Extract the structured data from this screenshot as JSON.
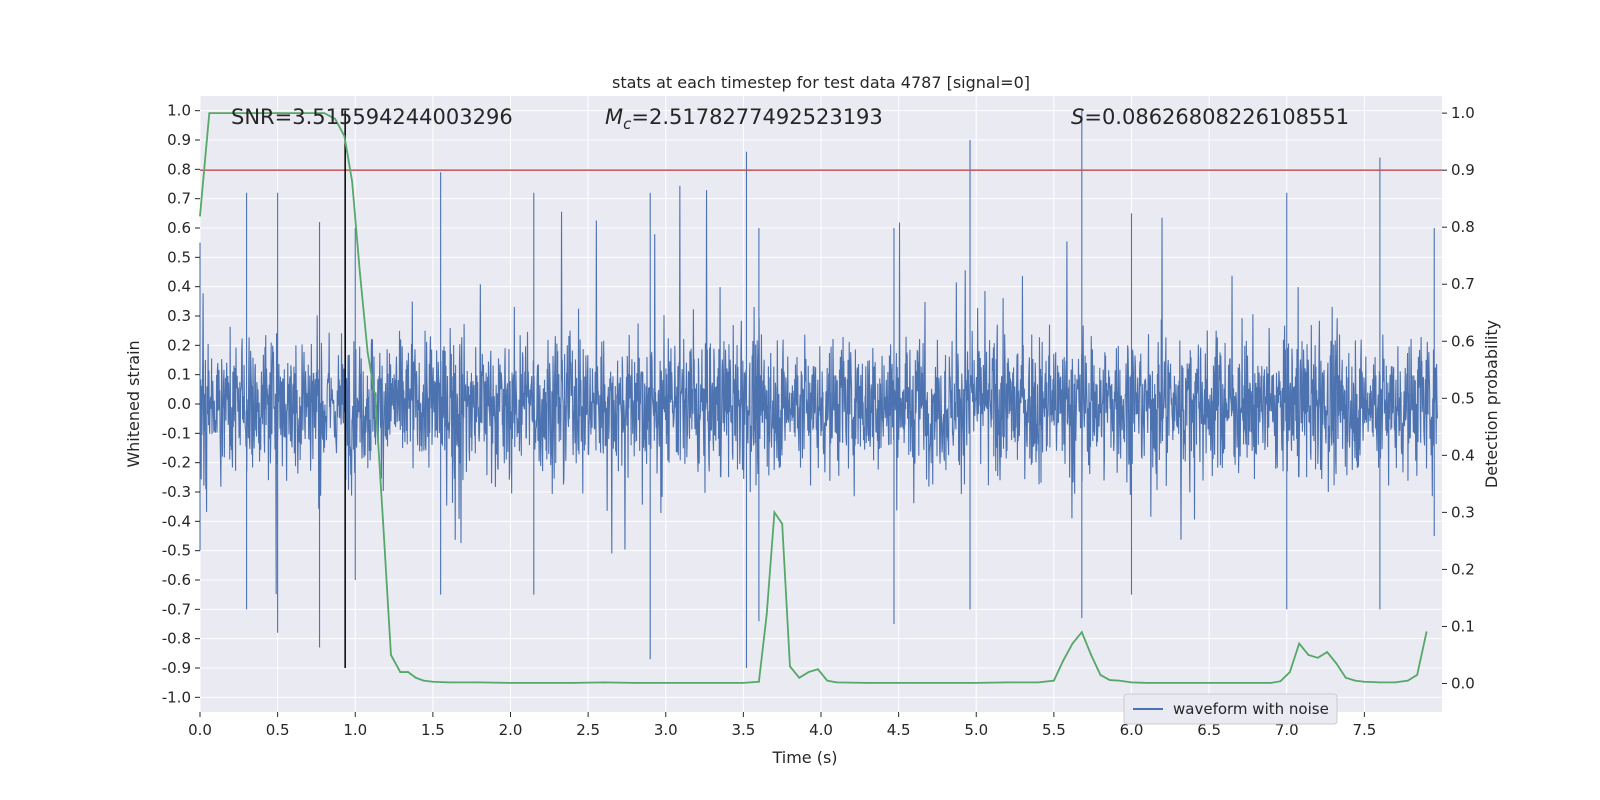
{
  "chart_data": {
    "type": "line",
    "title": "stats at each timestep for test data 4787 [signal=0]",
    "xlabel": "Time (s)",
    "ylabel": "Whitened strain",
    "y2label": "Detection probability",
    "xlim": [
      0.0,
      8.0
    ],
    "ylim": [
      -1.05,
      1.05
    ],
    "y2lim": [
      -0.05,
      1.03
    ],
    "x_ticks": [
      "0.0",
      "0.5",
      "1.0",
      "1.5",
      "2.0",
      "2.5",
      "3.0",
      "3.5",
      "4.0",
      "4.5",
      "5.0",
      "5.5",
      "6.0",
      "6.5",
      "7.0",
      "7.5"
    ],
    "y_ticks": [
      "-1.0",
      "-0.9",
      "-0.8",
      "-0.7",
      "-0.6",
      "-0.5",
      "-0.4",
      "-0.3",
      "-0.2",
      "-0.1",
      "0.0",
      "0.1",
      "0.2",
      "0.3",
      "0.4",
      "0.5",
      "0.6",
      "0.7",
      "0.8",
      "0.9",
      "1.0"
    ],
    "y2_ticks": [
      "0.0",
      "0.1",
      "0.2",
      "0.3",
      "0.4",
      "0.5",
      "0.6",
      "0.7",
      "0.8",
      "0.9",
      "1.0"
    ],
    "grid": true,
    "legend_position": "lower-right",
    "annotations": {
      "snr": "SNR=3.515594244003296",
      "mc_symbol": "M",
      "mc_sub": "c",
      "mc_value": "=2.5178277492523193",
      "s_symbol": "S",
      "s_value": "=0.08626808226108551"
    },
    "threshold": {
      "axis": "y2",
      "value": 0.9,
      "color": "#c44e52"
    },
    "marker_line": {
      "x": 0.935,
      "y_range": [
        -0.9,
        1.0
      ],
      "color": "#000000"
    },
    "series": [
      {
        "name": "waveform with noise",
        "axis": "y",
        "color": "#4c72b0",
        "envelope": [
          {
            "x": 0.0,
            "max": 0.55,
            "min": -0.5
          },
          {
            "x": 0.3,
            "max": 0.72,
            "min": -0.7
          },
          {
            "x": 0.5,
            "max": 0.72,
            "min": -0.78
          },
          {
            "x": 0.77,
            "max": 0.62,
            "min": -0.83
          },
          {
            "x": 1.0,
            "max": 0.6,
            "min": -0.6
          },
          {
            "x": 1.55,
            "max": 0.79,
            "min": -0.65
          },
          {
            "x": 2.15,
            "max": 0.72,
            "min": -0.65
          },
          {
            "x": 2.9,
            "max": 0.72,
            "min": -0.87
          },
          {
            "x": 3.52,
            "max": 0.86,
            "min": -0.9
          },
          {
            "x": 3.6,
            "max": 0.6,
            "min": -0.74
          },
          {
            "x": 4.47,
            "max": 0.6,
            "min": -0.75
          },
          {
            "x": 4.96,
            "max": 0.9,
            "min": -0.7
          },
          {
            "x": 5.68,
            "max": 1.0,
            "min": -0.73
          },
          {
            "x": 6.0,
            "max": 0.65,
            "min": -0.65
          },
          {
            "x": 7.0,
            "max": 0.72,
            "min": -0.7
          },
          {
            "x": 7.6,
            "max": 0.84,
            "min": -0.7
          },
          {
            "x": 7.95,
            "max": 0.6,
            "min": -0.45
          }
        ]
      },
      {
        "name": "",
        "axis": "y2",
        "color": "#55a868",
        "x": [
          0.0,
          0.06,
          0.15,
          0.3,
          0.5,
          0.7,
          0.8,
          0.87,
          0.93,
          0.98,
          1.03,
          1.08,
          1.13,
          1.18,
          1.23,
          1.29,
          1.34,
          1.39,
          1.44,
          1.5,
          1.6,
          1.8,
          2.0,
          2.2,
          2.4,
          2.6,
          2.8,
          3.0,
          3.2,
          3.4,
          3.5,
          3.6,
          3.65,
          3.7,
          3.75,
          3.8,
          3.86,
          3.92,
          3.98,
          4.04,
          4.1,
          4.3,
          4.5,
          4.8,
          5.0,
          5.2,
          5.4,
          5.5,
          5.56,
          5.62,
          5.68,
          5.74,
          5.8,
          5.86,
          5.92,
          6.0,
          6.1,
          6.3,
          6.6,
          6.9,
          6.96,
          7.02,
          7.08,
          7.14,
          7.2,
          7.26,
          7.32,
          7.38,
          7.44,
          7.5,
          7.6,
          7.7,
          7.78,
          7.84,
          7.9
        ],
        "values": [
          0.82,
          1.0,
          1.0,
          1.0,
          1.0,
          1.0,
          1.0,
          0.99,
          0.96,
          0.88,
          0.72,
          0.58,
          0.5,
          0.28,
          0.05,
          0.02,
          0.02,
          0.01,
          0.005,
          0.003,
          0.002,
          0.002,
          0.001,
          0.001,
          0.001,
          0.002,
          0.001,
          0.001,
          0.001,
          0.001,
          0.001,
          0.003,
          0.12,
          0.3,
          0.28,
          0.03,
          0.01,
          0.02,
          0.025,
          0.005,
          0.002,
          0.001,
          0.001,
          0.001,
          0.001,
          0.002,
          0.002,
          0.005,
          0.04,
          0.07,
          0.09,
          0.05,
          0.015,
          0.006,
          0.005,
          0.002,
          0.001,
          0.001,
          0.001,
          0.001,
          0.004,
          0.02,
          0.07,
          0.05,
          0.045,
          0.055,
          0.035,
          0.01,
          0.005,
          0.003,
          0.002,
          0.002,
          0.005,
          0.015,
          0.09
        ]
      }
    ]
  }
}
